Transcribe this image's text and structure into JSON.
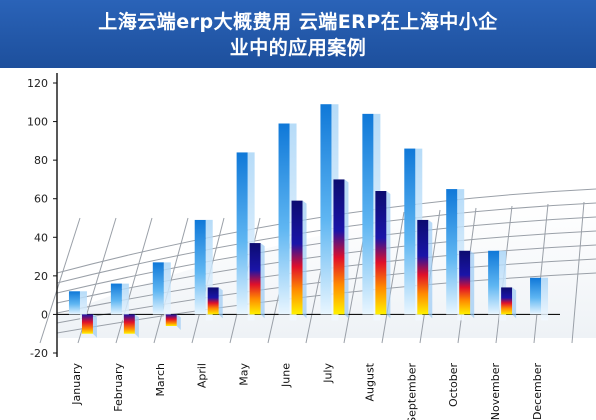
{
  "title": {
    "line1": "上海云端erp大概费用 云端ERP在上海中小企",
    "line2": "业中的应用案例"
  },
  "colors": {
    "banner": "#2055a8",
    "series_blue": "#1e8ee6",
    "series_navy": "#1a1a9c",
    "series_heat": "#ffee00",
    "grid": "#9aa0a8"
  },
  "chart_data": {
    "type": "bar",
    "categories": [
      "January",
      "February",
      "March",
      "April",
      "May",
      "June",
      "July",
      "August",
      "September",
      "October",
      "November",
      "December"
    ],
    "series": [
      {
        "values": [
          12,
          16,
          27,
          49,
          84,
          99,
          109,
          104,
          86,
          65,
          33,
          19
        ]
      },
      {
        "values": [
          -10,
          -10,
          -6,
          14,
          37,
          59,
          70,
          64,
          49,
          33,
          14,
          null
        ]
      }
    ],
    "ylim": [
      -20,
      120
    ],
    "yticks": [
      -20,
      0,
      20,
      40,
      60,
      80,
      100,
      120
    ],
    "grid": "perspective floor",
    "legend": "none"
  }
}
